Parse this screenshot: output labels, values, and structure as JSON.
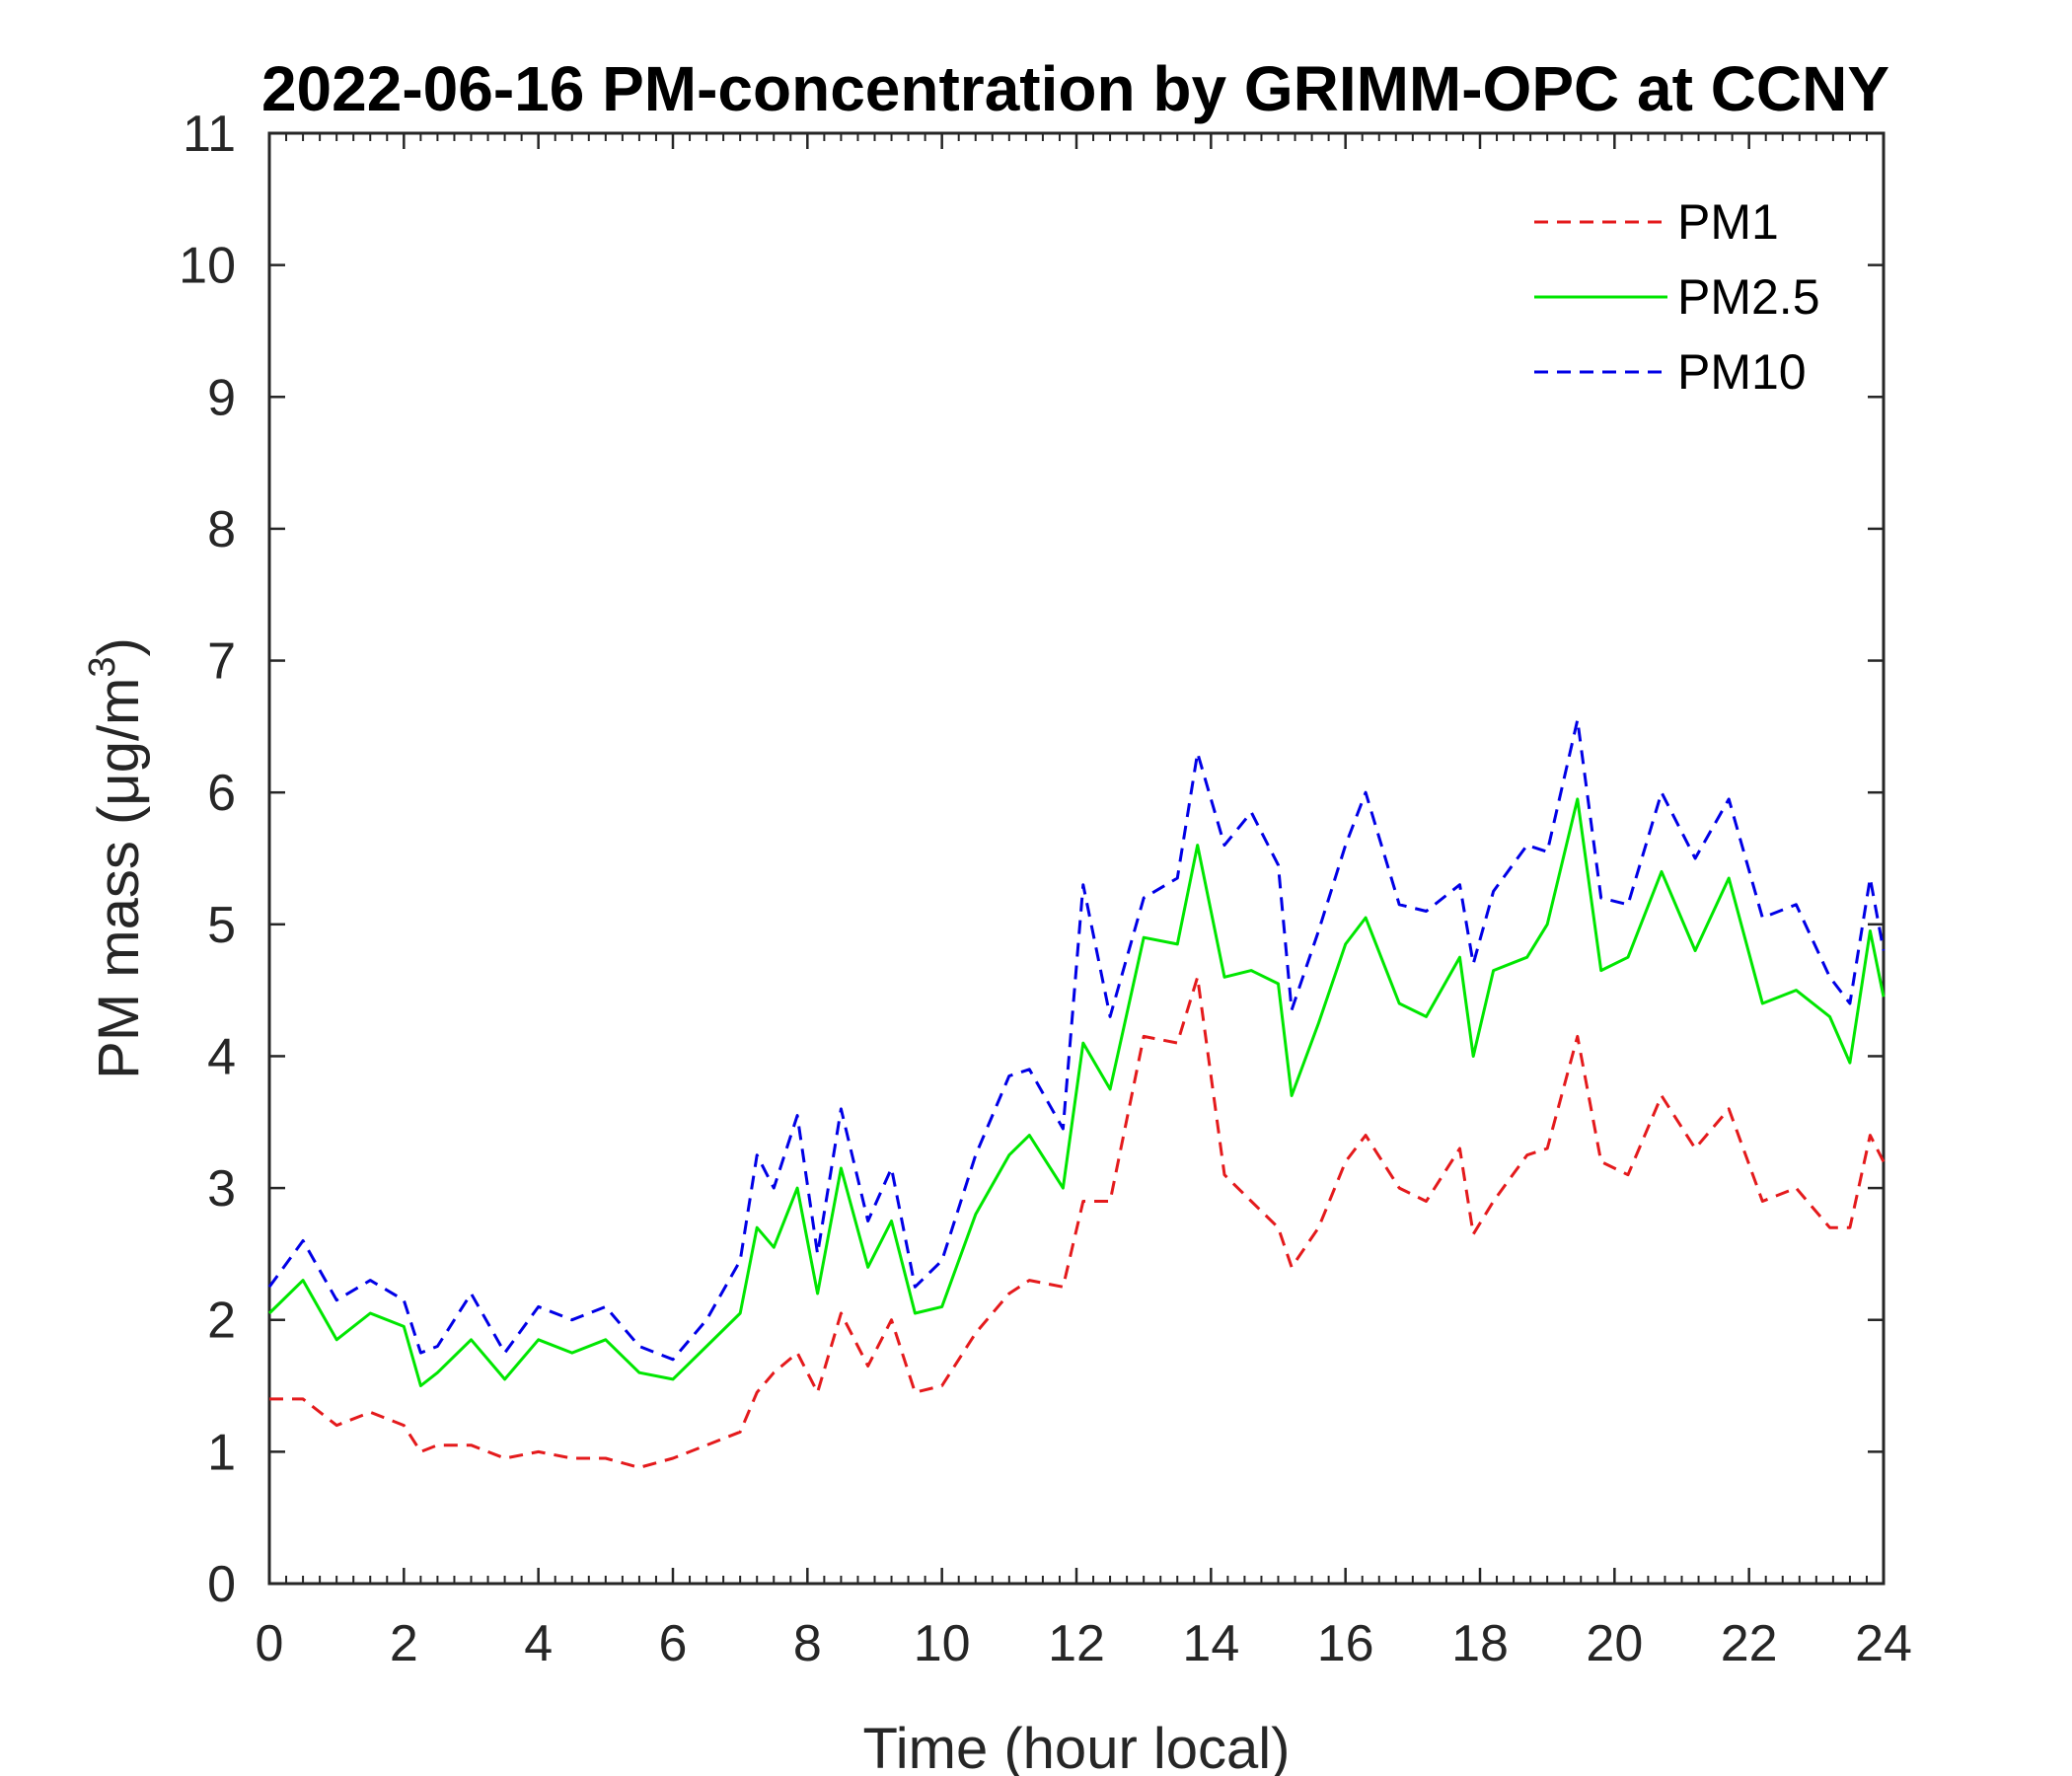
{
  "chart_data": {
    "type": "line",
    "title": "2022-06-16 PM-concentration by GRIMM-OPC at CCNY",
    "xlabel": "Time (hour local)",
    "ylabel": "PM mass (μg/m",
    "ylabel_sup": "3",
    "ylabel_close": ")",
    "xlim": [
      0,
      24
    ],
    "ylim": [
      0,
      11
    ],
    "xticks": [
      0,
      2,
      4,
      6,
      8,
      10,
      12,
      14,
      16,
      18,
      20,
      22,
      24
    ],
    "yticks": [
      0,
      1,
      2,
      3,
      4,
      5,
      6,
      7,
      8,
      9,
      10,
      11
    ],
    "grid": false,
    "legend_position": "top-right",
    "x": [
      0,
      0.5,
      1,
      1.5,
      2,
      2.25,
      2.5,
      3,
      3.5,
      4,
      4.5,
      5,
      5.5,
      6,
      6.5,
      7,
      7.25,
      7.5,
      7.85,
      8.15,
      8.5,
      8.9,
      9.25,
      9.6,
      10,
      10.5,
      11,
      11.3,
      11.8,
      12.1,
      12.5,
      13,
      13.5,
      13.8,
      14.2,
      14.6,
      15,
      15.2,
      15.6,
      16,
      16.3,
      16.8,
      17.2,
      17.7,
      17.9,
      18.2,
      18.7,
      19,
      19.45,
      19.8,
      20.2,
      20.7,
      21.2,
      21.7,
      22.2,
      22.7,
      23.2,
      23.5,
      23.8,
      24
    ],
    "series": [
      {
        "name": "PM1",
        "color": "#e41a1c",
        "dash": true,
        "values": [
          1.4,
          1.4,
          1.2,
          1.3,
          1.2,
          1.0,
          1.05,
          1.05,
          0.95,
          1.0,
          0.95,
          0.95,
          0.88,
          0.95,
          1.05,
          1.15,
          1.45,
          1.6,
          1.75,
          1.45,
          2.05,
          1.65,
          2.0,
          1.45,
          1.5,
          1.9,
          2.2,
          2.3,
          2.25,
          2.9,
          2.9,
          4.15,
          4.1,
          4.6,
          3.1,
          2.9,
          2.7,
          2.4,
          2.7,
          3.2,
          3.4,
          3.0,
          2.9,
          3.3,
          2.65,
          2.9,
          3.25,
          3.3,
          4.15,
          3.2,
          3.1,
          3.7,
          3.3,
          3.6,
          2.9,
          3.0,
          2.7,
          2.7,
          3.4,
          3.2
        ]
      },
      {
        "name": "PM2.5",
        "color": "#00e600",
        "dash": false,
        "values": [
          2.05,
          2.3,
          1.85,
          2.05,
          1.95,
          1.5,
          1.6,
          1.85,
          1.55,
          1.85,
          1.75,
          1.85,
          1.6,
          1.55,
          1.8,
          2.05,
          2.7,
          2.55,
          3.0,
          2.2,
          3.15,
          2.4,
          2.75,
          2.05,
          2.1,
          2.8,
          3.25,
          3.4,
          3.0,
          4.1,
          3.75,
          4.9,
          4.85,
          5.6,
          4.6,
          4.65,
          4.55,
          3.7,
          4.25,
          4.85,
          5.05,
          4.4,
          4.3,
          4.75,
          4.0,
          4.65,
          4.75,
          5.0,
          5.95,
          4.65,
          4.75,
          5.4,
          4.8,
          5.35,
          4.4,
          4.5,
          4.3,
          3.95,
          4.95,
          4.45
        ]
      },
      {
        "name": "PM10",
        "color": "#0000e6",
        "dash": true,
        "values": [
          2.25,
          2.6,
          2.15,
          2.3,
          2.15,
          1.75,
          1.8,
          2.2,
          1.75,
          2.1,
          2.0,
          2.1,
          1.8,
          1.7,
          2.0,
          2.45,
          3.25,
          3.0,
          3.55,
          2.5,
          3.6,
          2.75,
          3.15,
          2.25,
          2.45,
          3.25,
          3.85,
          3.9,
          3.45,
          5.3,
          4.3,
          5.2,
          5.35,
          6.3,
          5.6,
          5.85,
          5.45,
          4.35,
          4.95,
          5.6,
          6.0,
          5.15,
          5.1,
          5.3,
          4.7,
          5.25,
          5.6,
          5.55,
          6.55,
          5.2,
          5.15,
          6.0,
          5.5,
          5.95,
          5.05,
          5.15,
          4.6,
          4.4,
          5.35,
          4.8
        ]
      }
    ]
  }
}
